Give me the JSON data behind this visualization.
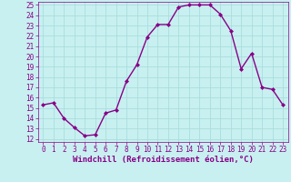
{
  "x": [
    0,
    1,
    2,
    3,
    4,
    5,
    6,
    7,
    8,
    9,
    10,
    11,
    12,
    13,
    14,
    15,
    16,
    17,
    18,
    19,
    20,
    21,
    22,
    23
  ],
  "y": [
    15.3,
    15.5,
    14.0,
    13.1,
    12.3,
    12.4,
    14.5,
    14.8,
    17.6,
    19.2,
    21.9,
    23.1,
    23.1,
    24.8,
    25.0,
    25.0,
    25.0,
    24.1,
    22.5,
    18.8,
    20.3,
    17.0,
    16.8,
    15.3
  ],
  "line_color": "#880088",
  "marker": "D",
  "marker_size": 2.0,
  "bg_color": "#c8f0f0",
  "grid_color": "#aadddd",
  "xlabel": "Windchill (Refroidissement éolien,°C)",
  "xlabel_color": "#880088",
  "ylim": [
    12,
    25
  ],
  "yticks": [
    12,
    13,
    14,
    15,
    16,
    17,
    18,
    19,
    20,
    21,
    22,
    23,
    24,
    25
  ],
  "xticks": [
    0,
    1,
    2,
    3,
    4,
    5,
    6,
    7,
    8,
    9,
    10,
    11,
    12,
    13,
    14,
    15,
    16,
    17,
    18,
    19,
    20,
    21,
    22,
    23
  ],
  "tick_color": "#880088",
  "tick_fontsize": 5.5,
  "xlabel_fontsize": 6.5,
  "line_width": 1.0
}
